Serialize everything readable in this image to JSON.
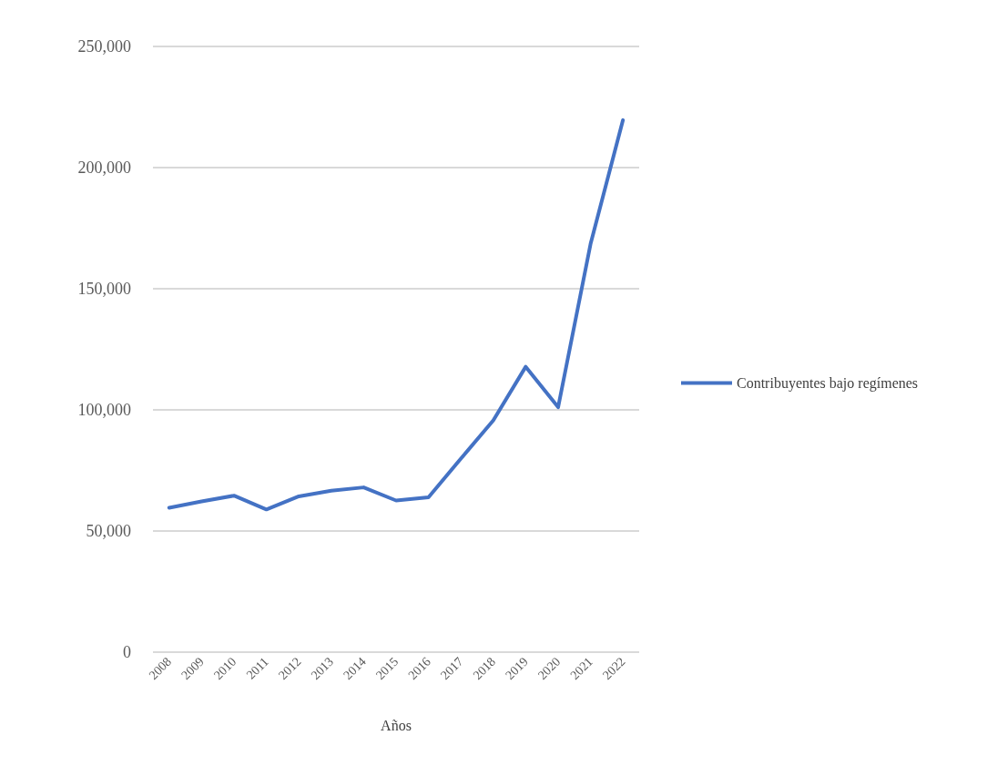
{
  "chart_data": {
    "type": "line",
    "xlabel": "Años",
    "categories": [
      "2008",
      "2009",
      "2010",
      "2011",
      "2012",
      "2013",
      "2014",
      "2015",
      "2016",
      "2017",
      "2018",
      "2019",
      "2020",
      "2021",
      "2022"
    ],
    "series": [
      {
        "name": "Contribuyentes bajo regímenes",
        "color": "#4472c4",
        "values": [
          59600,
          62200,
          64600,
          58900,
          64300,
          66600,
          68000,
          62600,
          63900,
          79900,
          95700,
          117800,
          101100,
          168500,
          219600
        ]
      }
    ],
    "ylim": [
      0,
      250000
    ],
    "yticks": [
      {
        "value": 0,
        "label": "0"
      },
      {
        "value": 50000,
        "label": "50,000"
      },
      {
        "value": 100000,
        "label": "100,000"
      },
      {
        "value": 150000,
        "label": "150,000"
      },
      {
        "value": 200000,
        "label": "200,000"
      },
      {
        "value": 250000,
        "label": "250,000"
      }
    ],
    "grid": "y",
    "legend": "right",
    "marker": "none",
    "line_style": "solid"
  }
}
